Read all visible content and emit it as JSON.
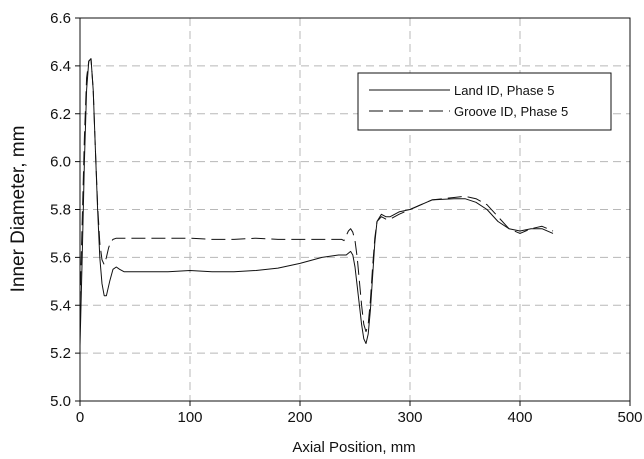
{
  "chart_data": {
    "type": "line",
    "title": "",
    "xlabel": "Axial Position, mm",
    "ylabel": "Inner Diameter, mm",
    "xlim": [
      0,
      500
    ],
    "ylim": [
      5.0,
      6.6
    ],
    "xticks": [
      "0",
      "100",
      "200",
      "300",
      "400",
      "500"
    ],
    "yticks": [
      "5.0",
      "5.2",
      "5.4",
      "5.6",
      "5.8",
      "6.0",
      "6.2",
      "6.4",
      "6.6"
    ],
    "grid": "dashed",
    "legend": {
      "position": "top-right"
    },
    "series": [
      {
        "name": "Land ID, Phase 5",
        "style": "solid",
        "color": "#111111",
        "x": [
          0,
          2,
          4,
          6,
          8,
          10,
          12,
          14,
          16,
          18,
          20,
          22,
          24,
          27,
          30,
          33,
          36,
          40,
          50,
          60,
          80,
          100,
          120,
          140,
          160,
          180,
          200,
          220,
          235,
          242,
          246,
          248,
          250,
          252,
          254,
          256,
          258,
          260,
          262,
          264,
          266,
          268,
          270,
          274,
          278,
          282,
          290,
          300,
          320,
          340,
          350,
          360,
          370,
          380,
          390,
          400,
          410,
          420,
          430
        ],
        "y": [
          5.23,
          5.6,
          6.0,
          6.3,
          6.42,
          6.43,
          6.3,
          6.05,
          5.8,
          5.6,
          5.49,
          5.44,
          5.44,
          5.5,
          5.55,
          5.56,
          5.55,
          5.54,
          5.54,
          5.54,
          5.54,
          5.545,
          5.54,
          5.54,
          5.545,
          5.555,
          5.575,
          5.6,
          5.61,
          5.61,
          5.625,
          5.61,
          5.56,
          5.48,
          5.4,
          5.32,
          5.26,
          5.24,
          5.28,
          5.38,
          5.52,
          5.66,
          5.75,
          5.78,
          5.77,
          5.77,
          5.79,
          5.8,
          5.84,
          5.845,
          5.845,
          5.83,
          5.8,
          5.75,
          5.72,
          5.71,
          5.72,
          5.72,
          5.7
        ]
      },
      {
        "name": "Groove ID, Phase 5",
        "style": "dashed",
        "color": "#111111",
        "x": [
          0,
          2,
          4,
          6,
          8,
          10,
          12,
          14,
          16,
          18,
          20,
          22,
          24,
          26,
          28,
          30,
          33,
          36,
          40,
          60,
          80,
          100,
          120,
          140,
          160,
          180,
          200,
          220,
          238,
          240,
          242,
          244,
          246,
          248,
          250,
          252,
          254,
          256,
          258,
          260,
          262,
          264,
          266,
          268,
          270,
          274,
          278,
          282,
          290,
          300,
          320,
          340,
          350,
          360,
          370,
          380,
          390,
          400,
          410,
          420,
          430
        ],
        "y": [
          5.4,
          5.75,
          6.1,
          6.35,
          6.42,
          6.43,
          6.3,
          6.05,
          5.82,
          5.66,
          5.59,
          5.57,
          5.6,
          5.64,
          5.665,
          5.675,
          5.68,
          5.68,
          5.68,
          5.68,
          5.68,
          5.68,
          5.675,
          5.675,
          5.68,
          5.675,
          5.675,
          5.675,
          5.675,
          5.67,
          5.69,
          5.71,
          5.72,
          5.705,
          5.67,
          5.6,
          5.5,
          5.4,
          5.32,
          5.29,
          5.32,
          5.42,
          5.56,
          5.68,
          5.75,
          5.77,
          5.76,
          5.76,
          5.78,
          5.8,
          5.84,
          5.85,
          5.855,
          5.845,
          5.82,
          5.77,
          5.72,
          5.7,
          5.72,
          5.73,
          5.71
        ]
      }
    ]
  }
}
